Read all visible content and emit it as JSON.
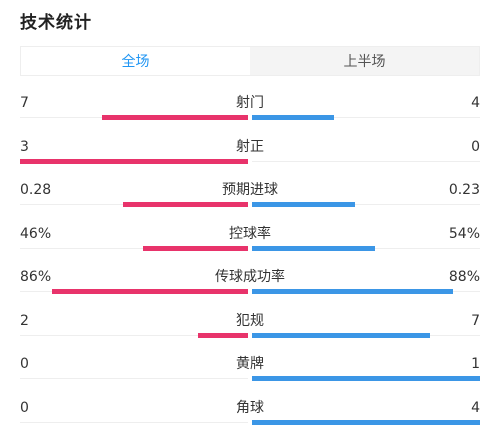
{
  "header": {
    "title": "技术统计"
  },
  "tabs": [
    {
      "label": "全场",
      "active": true
    },
    {
      "label": "上半场",
      "active": false
    }
  ],
  "colors": {
    "home": "#e8336b",
    "away": "#3b96e6",
    "active_tab": "#2196f3"
  },
  "stats": [
    {
      "label": "射门",
      "left": "7",
      "right": "4",
      "left_fraction": 0.64,
      "right_fraction": 0.36
    },
    {
      "label": "射正",
      "left": "3",
      "right": "0",
      "left_fraction": 1.0,
      "right_fraction": 0.0
    },
    {
      "label": "预期进球",
      "left": "0.28",
      "right": "0.23",
      "left_fraction": 0.55,
      "right_fraction": 0.45
    },
    {
      "label": "控球率",
      "left": "46%",
      "right": "54%",
      "left_fraction": 0.46,
      "right_fraction": 0.54
    },
    {
      "label": "传球成功率",
      "left": "86%",
      "right": "88%",
      "left_fraction": 0.86,
      "right_fraction": 0.88
    },
    {
      "label": "犯规",
      "left": "2",
      "right": "7",
      "left_fraction": 0.22,
      "right_fraction": 0.78
    },
    {
      "label": "黄牌",
      "left": "0",
      "right": "1",
      "left_fraction": 0.0,
      "right_fraction": 1.0
    },
    {
      "label": "角球",
      "left": "0",
      "right": "4",
      "left_fraction": 0.0,
      "right_fraction": 1.0
    }
  ]
}
